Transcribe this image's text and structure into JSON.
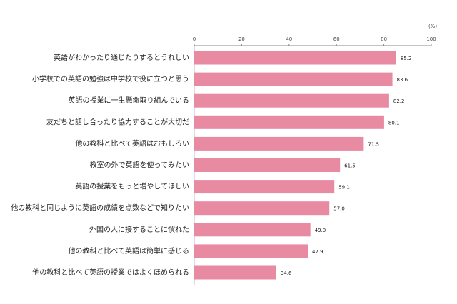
{
  "chart_data": {
    "type": "bar",
    "orientation": "horizontal",
    "unit": "(%)",
    "categories": [
      "英語がわかったり通じたりするとうれしい",
      "小学校での英語の勉強は中学校で役に立つと思う",
      "英語の授業に一生懸命取り組んでいる",
      "友だちと話し合ったり協力することが大切だ",
      "他の教科と比べて英語はおもしろい",
      "教室の外で英語を使ってみたい",
      "英語の授業をもっと増やしてほしい",
      "他の教科と同じように英語の成績を点数などで知りたい",
      "外国の人に接することに慣れた",
      "他の教科と比べて英語は簡単に感じる",
      "他の教科と比べて英語の授業ではよくほめられる"
    ],
    "values": [
      85.2,
      83.6,
      82.2,
      80.1,
      71.5,
      61.5,
      59.1,
      57.0,
      49.0,
      47.9,
      34.6
    ],
    "value_labels": [
      "85.2",
      "83.6",
      "82.2",
      "80.1",
      "71.5",
      "61.5",
      "59.1",
      "57.0",
      "49.0",
      "47.9",
      "34.6"
    ],
    "color": "#e98aa3",
    "xlim": [
      0,
      100
    ],
    "xticks": [
      0,
      20,
      40,
      60,
      80,
      100
    ],
    "grid": false
  }
}
